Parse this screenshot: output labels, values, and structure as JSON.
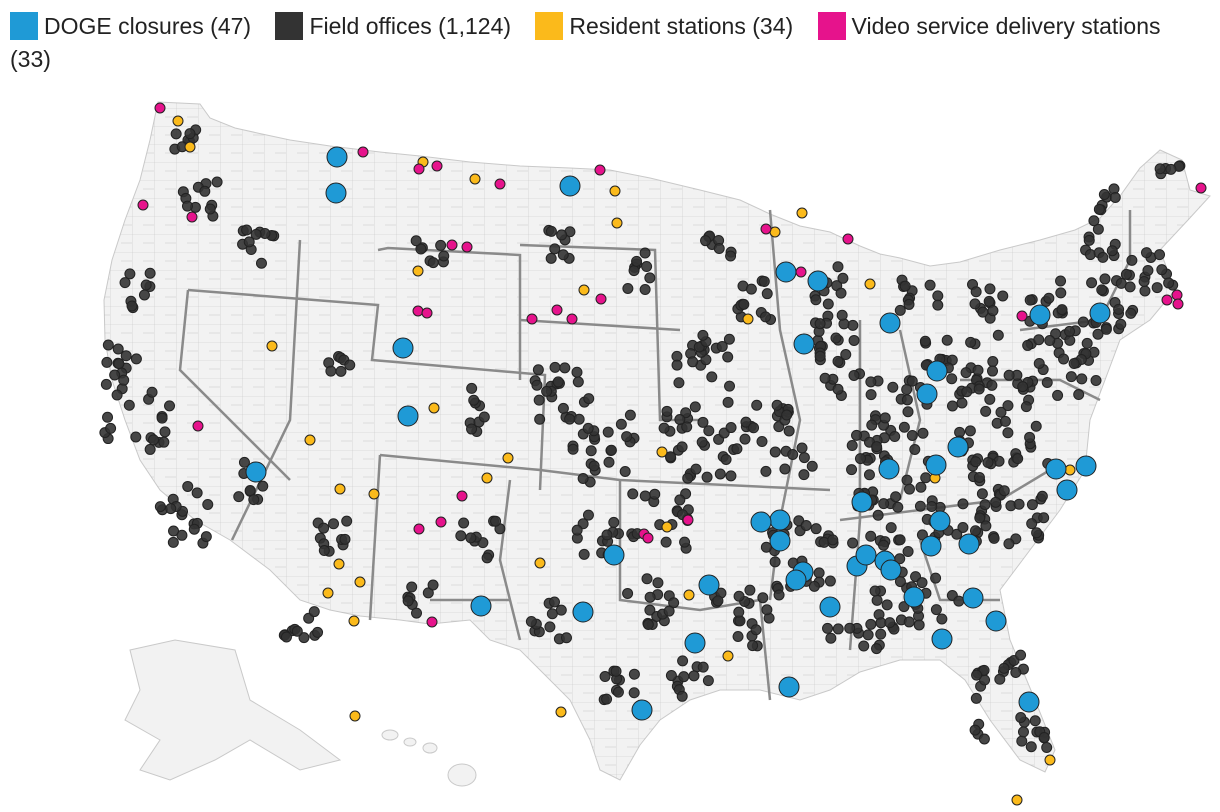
{
  "legend": {
    "items": [
      {
        "label": "DOGE closures (47)",
        "color": "#1f9ad6"
      },
      {
        "label": "Field offices (1,124)",
        "color": "#333333"
      },
      {
        "label": "Resident stations (34)",
        "color": "#fbba1b"
      },
      {
        "label": "Video service delivery stations (33)",
        "color": "#e6138c"
      }
    ]
  },
  "chart_data": {
    "type": "map",
    "title": "",
    "region": "United States (contiguous) with Alaska and Hawaii insets",
    "series": [
      {
        "name": "DOGE closures",
        "count": 47,
        "color": "#1f9ad6"
      },
      {
        "name": "Field offices",
        "count": 1124,
        "color": "#333333"
      },
      {
        "name": "Resident stations",
        "count": 34,
        "color": "#fbba1b"
      },
      {
        "name": "Video service delivery stations",
        "count": 33,
        "color": "#e6138c"
      }
    ]
  },
  "colors": {
    "land": "#f2f2f2",
    "county_lines": "#a8a8a8",
    "state_lines": "#8a8a8a"
  }
}
